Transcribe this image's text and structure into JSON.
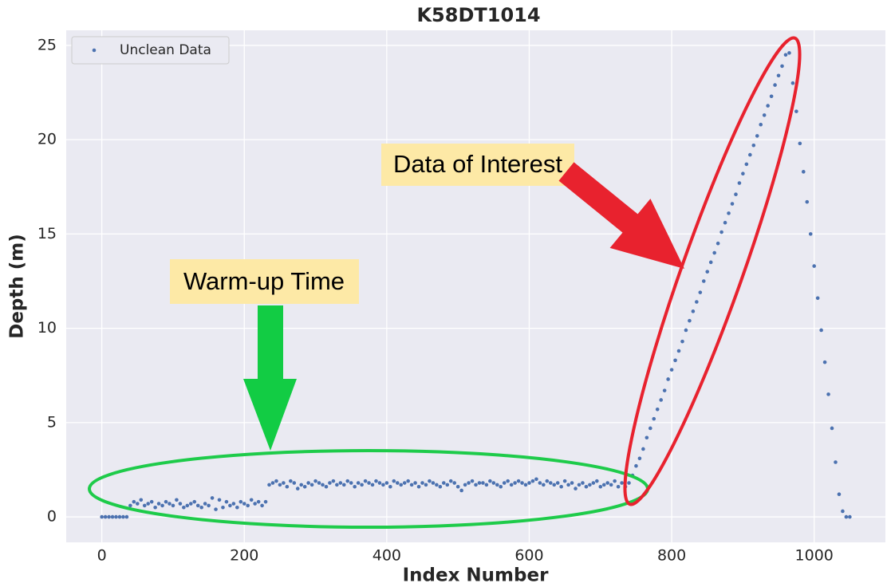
{
  "chart_data": {
    "type": "scatter",
    "title": "K58DT1014",
    "x_label": "Index Number",
    "y_label": "Depth (m)",
    "series": [
      {
        "name": "Unclean Data",
        "color": "#4c72b0",
        "x": [
          0,
          5,
          10,
          15,
          20,
          25,
          30,
          35,
          40,
          45,
          50,
          55,
          60,
          65,
          70,
          75,
          80,
          85,
          90,
          95,
          100,
          105,
          110,
          115,
          120,
          125,
          130,
          135,
          140,
          145,
          150,
          155,
          160,
          165,
          170,
          175,
          180,
          185,
          190,
          195,
          200,
          205,
          210,
          215,
          220,
          225,
          230,
          235,
          240,
          245,
          250,
          255,
          260,
          265,
          270,
          275,
          280,
          285,
          290,
          295,
          300,
          305,
          310,
          315,
          320,
          325,
          330,
          335,
          340,
          345,
          350,
          355,
          360,
          365,
          370,
          375,
          380,
          385,
          390,
          395,
          400,
          405,
          410,
          415,
          420,
          425,
          430,
          435,
          440,
          445,
          450,
          455,
          460,
          465,
          470,
          475,
          480,
          485,
          490,
          495,
          500,
          505,
          510,
          515,
          520,
          525,
          530,
          535,
          540,
          545,
          550,
          555,
          560,
          565,
          570,
          575,
          580,
          585,
          590,
          595,
          600,
          605,
          610,
          615,
          620,
          625,
          630,
          635,
          640,
          645,
          650,
          655,
          660,
          665,
          670,
          675,
          680,
          685,
          690,
          695,
          700,
          705,
          710,
          715,
          720,
          725,
          730,
          735,
          740,
          745,
          750,
          755,
          760,
          765,
          770,
          775,
          780,
          785,
          790,
          795,
          800,
          805,
          810,
          815,
          820,
          825,
          830,
          835,
          840,
          845,
          850,
          855,
          860,
          865,
          870,
          875,
          880,
          885,
          890,
          895,
          900,
          905,
          910,
          915,
          920,
          925,
          930,
          935,
          940,
          945,
          950,
          955,
          960,
          965,
          970,
          975,
          980,
          985,
          990,
          995,
          1000,
          1005,
          1010,
          1015,
          1020,
          1025,
          1030,
          1035,
          1040,
          1045,
          1050
        ],
        "values": [
          0,
          0,
          0,
          0,
          0,
          0,
          0,
          0,
          0.6,
          0.8,
          0.7,
          0.9,
          0.6,
          0.7,
          0.8,
          0.5,
          0.7,
          0.6,
          0.8,
          0.7,
          0.6,
          0.9,
          0.7,
          0.5,
          0.6,
          0.7,
          0.8,
          0.6,
          0.5,
          0.7,
          0.6,
          1.0,
          0.4,
          0.9,
          0.5,
          0.8,
          0.6,
          0.7,
          0.5,
          0.8,
          0.7,
          0.6,
          0.9,
          0.7,
          0.8,
          0.6,
          0.8,
          1.7,
          1.8,
          1.9,
          1.7,
          1.8,
          1.6,
          1.9,
          1.8,
          1.5,
          1.7,
          1.6,
          1.8,
          1.7,
          1.9,
          1.8,
          1.7,
          1.6,
          1.8,
          1.9,
          1.7,
          1.8,
          1.7,
          1.9,
          1.8,
          1.6,
          1.8,
          1.7,
          1.9,
          1.8,
          1.7,
          1.9,
          1.8,
          1.7,
          1.8,
          1.6,
          1.9,
          1.8,
          1.7,
          1.8,
          1.9,
          1.7,
          1.8,
          1.6,
          1.8,
          1.7,
          1.9,
          1.8,
          1.7,
          1.6,
          1.8,
          1.7,
          1.9,
          1.8,
          1.6,
          1.4,
          1.7,
          1.8,
          1.9,
          1.7,
          1.8,
          1.8,
          1.7,
          1.9,
          1.8,
          1.7,
          1.6,
          1.8,
          1.9,
          1.7,
          1.8,
          1.9,
          1.8,
          1.7,
          1.8,
          1.9,
          2.0,
          1.8,
          1.7,
          1.9,
          1.8,
          1.7,
          1.8,
          1.6,
          1.9,
          1.7,
          1.8,
          1.5,
          1.7,
          1.8,
          1.6,
          1.7,
          1.8,
          1.9,
          1.6,
          1.7,
          1.8,
          1.7,
          1.9,
          1.6,
          1.8,
          1.6,
          1.8,
          2.2,
          2.7,
          3.1,
          3.6,
          4.2,
          4.7,
          5.2,
          5.7,
          6.2,
          6.7,
          7.3,
          7.8,
          8.3,
          8.8,
          9.3,
          9.9,
          10.4,
          10.9,
          11.4,
          11.9,
          12.5,
          13.0,
          13.5,
          14.0,
          14.5,
          15.1,
          15.6,
          16.1,
          16.6,
          17.1,
          17.7,
          18.2,
          18.7,
          19.2,
          19.7,
          20.2,
          20.8,
          21.3,
          21.8,
          22.3,
          22.9,
          23.4,
          23.9,
          24.5,
          24.6,
          23.0,
          21.5,
          19.8,
          18.3,
          16.7,
          15.0,
          13.3,
          11.6,
          9.9,
          8.2,
          6.5,
          4.7,
          2.9,
          1.2,
          0.3,
          0,
          0
        ]
      }
    ],
    "xlim": [
      -50,
      1100
    ],
    "xticks": [
      0,
      200,
      400,
      600,
      800,
      1000
    ],
    "ylim": [
      -1.35,
      25.8
    ],
    "yticks": [
      0,
      5,
      10,
      15,
      20,
      25
    ],
    "grid": true,
    "legend": "upper-left",
    "annotations": [
      "Warm-up Time",
      "Data of Interest"
    ]
  }
}
